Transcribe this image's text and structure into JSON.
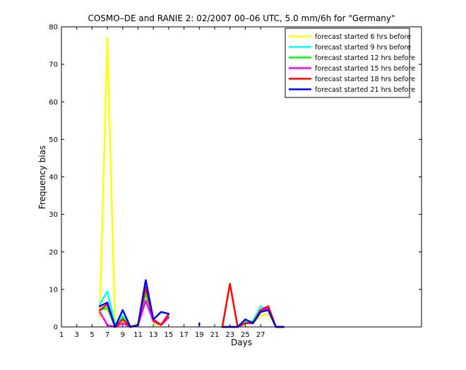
{
  "chart_data": {
    "type": "line",
    "title": "COSMO–DE and RANIE 2: 02/2007 00–06 UTC, 5.0 mm/6h for \"Germany\"",
    "xlabel": "Days",
    "ylabel": "Frequency bias",
    "xlim": [
      1,
      48
    ],
    "ylim": [
      0,
      80
    ],
    "xticks": [
      1,
      3,
      5,
      7,
      9,
      11,
      13,
      15,
      17,
      19,
      21,
      23,
      25,
      27
    ],
    "xtick_labels": [
      "1",
      "3",
      "5",
      "7",
      "9",
      "11",
      "13",
      "15",
      "17",
      "19",
      "21",
      "23",
      "25",
      "27"
    ],
    "yticks": [
      0,
      10,
      20,
      30,
      40,
      50,
      60,
      70,
      80
    ],
    "ytick_labels": [
      "0",
      "10",
      "20",
      "30",
      "40",
      "50",
      "60",
      "70",
      "80"
    ],
    "grid": false,
    "legend_position": "top-right",
    "series": [
      {
        "name": "forecast started 6 hrs before",
        "color": "#ffff00",
        "segments": [
          [
            [
              6,
              2.5
            ],
            [
              7,
              77
            ],
            [
              8,
              0.3
            ],
            [
              9,
              1.5
            ],
            [
              10,
              0
            ],
            [
              11,
              1
            ],
            [
              12,
              9
            ],
            [
              13,
              1
            ],
            [
              14,
              0.5
            ],
            [
              15,
              3
            ]
          ],
          [
            [
              22,
              0
            ],
            [
              23,
              0
            ],
            [
              24,
              0
            ],
            [
              25,
              1
            ],
            [
              26,
              1
            ],
            [
              27,
              3
            ],
            [
              28,
              3.5
            ],
            [
              29,
              0
            ],
            [
              30,
              0
            ]
          ]
        ]
      },
      {
        "name": "forecast started 9 hrs before",
        "color": "#00ffff",
        "segments": [
          [
            [
              6,
              6
            ],
            [
              7,
              9.5
            ],
            [
              8,
              0.5
            ],
            [
              9,
              3
            ],
            [
              10,
              0
            ],
            [
              11,
              0.5
            ],
            [
              12,
              10
            ],
            [
              13,
              2
            ],
            [
              14,
              0.5
            ],
            [
              15,
              2.5
            ]
          ],
          [
            [
              22,
              0
            ],
            [
              23,
              0
            ],
            [
              24,
              0
            ],
            [
              25,
              1.5
            ],
            [
              26,
              1.5
            ],
            [
              27,
              5.5
            ],
            [
              28,
              4.5
            ],
            [
              29,
              0
            ],
            [
              30,
              0
            ]
          ]
        ]
      },
      {
        "name": "forecast started 12 hrs before",
        "color": "#00ff00",
        "segments": [
          [
            [
              6,
              4.5
            ],
            [
              7,
              5
            ],
            [
              8,
              0
            ],
            [
              9,
              2.5
            ],
            [
              10,
              0
            ],
            [
              11,
              0.5
            ],
            [
              12,
              9
            ],
            [
              13,
              1.5
            ],
            [
              14,
              0.5
            ],
            [
              15,
              3
            ]
          ],
          [
            [
              22,
              0
            ],
            [
              23,
              0
            ],
            [
              24,
              0
            ],
            [
              25,
              1
            ],
            [
              26,
              1.5
            ],
            [
              27,
              4
            ],
            [
              28,
              4.5
            ],
            [
              29,
              0
            ],
            [
              30,
              0
            ]
          ]
        ]
      },
      {
        "name": "forecast started 15 hrs before",
        "color": "#ff00ff",
        "segments": [
          [
            [
              6,
              4
            ],
            [
              7,
              0.5
            ],
            [
              8,
              0
            ],
            [
              9,
              1
            ],
            [
              10,
              0
            ],
            [
              11,
              0.5
            ],
            [
              12,
              7
            ],
            [
              13,
              1.5
            ],
            [
              14,
              0.5
            ],
            [
              15,
              2.5
            ]
          ],
          [
            [
              22,
              0
            ],
            [
              23,
              0
            ],
            [
              24,
              0
            ],
            [
              25,
              1
            ],
            [
              26,
              1
            ],
            [
              27,
              4
            ],
            [
              28,
              5
            ],
            [
              29,
              0
            ],
            [
              30,
              0
            ]
          ]
        ]
      },
      {
        "name": "forecast started 18 hrs before",
        "color": "#ff0000",
        "segments": [
          [
            [
              6,
              4.5
            ],
            [
              7,
              6
            ],
            [
              8,
              0
            ],
            [
              9,
              2
            ],
            [
              10,
              0
            ],
            [
              11,
              0.5
            ],
            [
              12,
              10.5
            ],
            [
              13,
              2
            ],
            [
              14,
              0.5
            ],
            [
              15,
              3.5
            ]
          ],
          [
            [
              22,
              0
            ],
            [
              23,
              11.5
            ],
            [
              24,
              0
            ],
            [
              25,
              1
            ],
            [
              26,
              1
            ],
            [
              27,
              4.5
            ],
            [
              28,
              5.5
            ],
            [
              29,
              0
            ],
            [
              30,
              0
            ]
          ]
        ]
      },
      {
        "name": "forecast started 21 hrs before",
        "color": "#0000ff",
        "segments": [
          [
            [
              6,
              5.5
            ],
            [
              7,
              6.5
            ],
            [
              8,
              0
            ],
            [
              9,
              4.5
            ],
            [
              10,
              0
            ],
            [
              11,
              0.5
            ],
            [
              12,
              12.5
            ],
            [
              13,
              2
            ],
            [
              14,
              4
            ],
            [
              15,
              3.5
            ]
          ],
          [
            [
              19,
              0.5
            ],
            [
              19,
              1
            ]
          ],
          [
            [
              22,
              0
            ],
            [
              23,
              0
            ],
            [
              24,
              0
            ],
            [
              25,
              2
            ],
            [
              26,
              1
            ],
            [
              27,
              4
            ],
            [
              28,
              4.5
            ],
            [
              29,
              0
            ],
            [
              30,
              0
            ]
          ]
        ]
      }
    ]
  }
}
